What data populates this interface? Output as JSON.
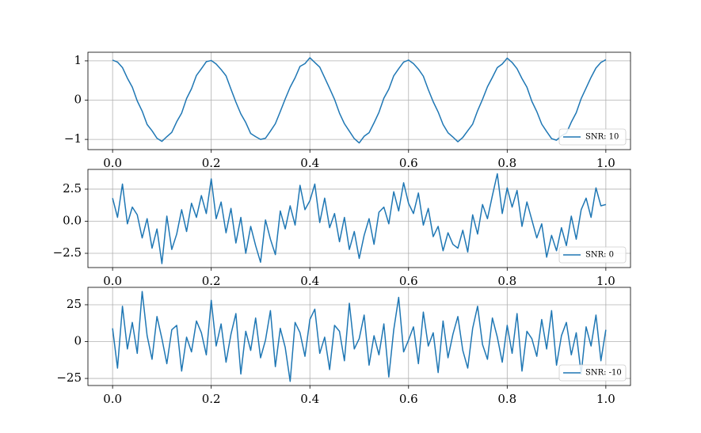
{
  "chart_data": [
    {
      "type": "line",
      "x": [
        0,
        0.01,
        0.02,
        0.03,
        0.04,
        0.05,
        0.06,
        0.07,
        0.08,
        0.09,
        0.1,
        0.11,
        0.12,
        0.13,
        0.14,
        0.15,
        0.16,
        0.17,
        0.18,
        0.19,
        0.2,
        0.21,
        0.22,
        0.23,
        0.24,
        0.25,
        0.26,
        0.27,
        0.28,
        0.29,
        0.3,
        0.31,
        0.32,
        0.33,
        0.34,
        0.35,
        0.36,
        0.37,
        0.38,
        0.39,
        0.4,
        0.41,
        0.42,
        0.43,
        0.44,
        0.45,
        0.46,
        0.47,
        0.48,
        0.49,
        0.5,
        0.51,
        0.52,
        0.53,
        0.54,
        0.55,
        0.56,
        0.57,
        0.58,
        0.59,
        0.6,
        0.61,
        0.62,
        0.63,
        0.64,
        0.65,
        0.66,
        0.67,
        0.68,
        0.69,
        0.7,
        0.71,
        0.72,
        0.73,
        0.74,
        0.75,
        0.76,
        0.77,
        0.78,
        0.79,
        0.8,
        0.81,
        0.82,
        0.83,
        0.84,
        0.85,
        0.86,
        0.87,
        0.88,
        0.89,
        0.9,
        0.91,
        0.92,
        0.93,
        0.94,
        0.95,
        0.96,
        0.97,
        0.98,
        0.99,
        1
      ],
      "series": [
        {
          "name": "SNR: 10",
          "color": "#1f77b4",
          "values": [
            1.02,
            0.97,
            0.83,
            0.56,
            0.33,
            -0.02,
            -0.28,
            -0.62,
            -0.78,
            -0.97,
            -1.05,
            -0.93,
            -0.82,
            -0.55,
            -0.33,
            0.04,
            0.29,
            0.63,
            0.8,
            0.98,
            1.01,
            0.92,
            0.78,
            0.62,
            0.28,
            -0.05,
            -0.35,
            -0.57,
            -0.85,
            -0.93,
            -1.0,
            -0.97,
            -0.79,
            -0.6,
            -0.29,
            0.03,
            0.33,
            0.57,
            0.86,
            0.93,
            1.08,
            0.96,
            0.84,
            0.57,
            0.3,
            0.02,
            -0.33,
            -0.6,
            -0.79,
            -0.98,
            -1.09,
            -0.92,
            -0.83,
            -0.58,
            -0.31,
            0.05,
            0.28,
            0.62,
            0.8,
            0.97,
            1.02,
            0.93,
            0.79,
            0.61,
            0.27,
            -0.04,
            -0.3,
            -0.62,
            -0.83,
            -0.94,
            -1.06,
            -0.95,
            -0.78,
            -0.61,
            -0.27,
            0.02,
            0.34,
            0.58,
            0.83,
            0.92,
            1.07,
            0.96,
            0.8,
            0.55,
            0.33,
            -0.03,
            -0.29,
            -0.61,
            -0.8,
            -0.98,
            -1.02,
            -0.91,
            -0.84,
            -0.56,
            -0.32,
            0.04,
            0.31,
            0.58,
            0.82,
            0.96,
            1.03
          ]
        }
      ],
      "xlim": [
        -0.05,
        1.05
      ],
      "ylim": [
        -1.26,
        1.22
      ],
      "xticks": [
        {
          "value": 0,
          "label": "0.0"
        },
        0.2,
        0.4,
        0.6,
        0.8,
        {
          "value": 1,
          "label": "1.0"
        }
      ],
      "yticks": [
        {
          "value": -1,
          "label": "−1"
        },
        0,
        1
      ],
      "grid": true,
      "legend": "lower right"
    },
    {
      "type": "line",
      "x": [
        0,
        0.01,
        0.02,
        0.03,
        0.04,
        0.05,
        0.06,
        0.07,
        0.08,
        0.09,
        0.1,
        0.11,
        0.12,
        0.13,
        0.14,
        0.15,
        0.16,
        0.17,
        0.18,
        0.19,
        0.2,
        0.21,
        0.22,
        0.23,
        0.24,
        0.25,
        0.26,
        0.27,
        0.28,
        0.29,
        0.3,
        0.31,
        0.32,
        0.33,
        0.34,
        0.35,
        0.36,
        0.37,
        0.38,
        0.39,
        0.4,
        0.41,
        0.42,
        0.43,
        0.44,
        0.45,
        0.46,
        0.47,
        0.48,
        0.49,
        0.5,
        0.51,
        0.52,
        0.53,
        0.54,
        0.55,
        0.56,
        0.57,
        0.58,
        0.59,
        0.6,
        0.61,
        0.62,
        0.63,
        0.64,
        0.65,
        0.66,
        0.67,
        0.68,
        0.69,
        0.7,
        0.71,
        0.72,
        0.73,
        0.74,
        0.75,
        0.76,
        0.77,
        0.78,
        0.79,
        0.8,
        0.81,
        0.82,
        0.83,
        0.84,
        0.85,
        0.86,
        0.87,
        0.88,
        0.89,
        0.9,
        0.91,
        0.92,
        0.93,
        0.94,
        0.95,
        0.96,
        0.97,
        0.98,
        0.99,
        1
      ],
      "series": [
        {
          "name": "SNR: 0",
          "color": "#1f77b4",
          "values": [
            1.8,
            0.3,
            2.9,
            -0.2,
            1.1,
            0.5,
            -1.3,
            0.2,
            -2.1,
            -0.6,
            -3.3,
            0.4,
            -2.2,
            -1.0,
            0.9,
            -0.8,
            1.4,
            0.3,
            2.0,
            0.6,
            3.3,
            0.2,
            1.5,
            -0.9,
            1.0,
            -1.7,
            0.3,
            -2.5,
            -0.4,
            -1.9,
            -3.2,
            0.1,
            -1.4,
            -2.6,
            0.8,
            -0.6,
            1.2,
            -0.3,
            2.8,
            0.9,
            1.6,
            2.9,
            -0.1,
            1.8,
            -0.5,
            0.6,
            -1.6,
            0.3,
            -2.2,
            -0.8,
            -2.9,
            -1.1,
            0.2,
            -1.8,
            0.7,
            1.1,
            -0.2,
            2.3,
            0.8,
            3.0,
            1.4,
            0.6,
            2.2,
            -0.3,
            1.0,
            -1.2,
            -0.4,
            -2.3,
            -0.9,
            -1.8,
            -2.1,
            -0.7,
            -2.4,
            0.5,
            -1.0,
            1.3,
            0.2,
            2.0,
            3.7,
            0.6,
            2.6,
            1.1,
            2.4,
            -0.4,
            1.5,
            0.1,
            -1.3,
            -0.2,
            -2.8,
            -1.1,
            -2.3,
            -0.5,
            -1.9,
            0.4,
            -1.4,
            0.9,
            1.8,
            0.3,
            2.6,
            1.2,
            1.3
          ]
        }
      ],
      "xlim": [
        -0.05,
        1.05
      ],
      "ylim": [
        -3.61,
        4.04
      ],
      "xticks": [
        {
          "value": 0,
          "label": "0.0"
        },
        0.2,
        0.4,
        0.6,
        0.8,
        {
          "value": 1,
          "label": "1.0"
        }
      ],
      "yticks": [
        {
          "value": -2.5,
          "label": "−2.5"
        },
        {
          "value": 0,
          "label": "0.0"
        },
        2.5
      ],
      "grid": true,
      "legend": "lower right"
    },
    {
      "type": "line",
      "x": [
        0,
        0.01,
        0.02,
        0.03,
        0.04,
        0.05,
        0.06,
        0.07,
        0.08,
        0.09,
        0.1,
        0.11,
        0.12,
        0.13,
        0.14,
        0.15,
        0.16,
        0.17,
        0.18,
        0.19,
        0.2,
        0.21,
        0.22,
        0.23,
        0.24,
        0.25,
        0.26,
        0.27,
        0.28,
        0.29,
        0.3,
        0.31,
        0.32,
        0.33,
        0.34,
        0.35,
        0.36,
        0.37,
        0.38,
        0.39,
        0.4,
        0.41,
        0.42,
        0.43,
        0.44,
        0.45,
        0.46,
        0.47,
        0.48,
        0.49,
        0.5,
        0.51,
        0.52,
        0.53,
        0.54,
        0.55,
        0.56,
        0.57,
        0.58,
        0.59,
        0.6,
        0.61,
        0.62,
        0.63,
        0.64,
        0.65,
        0.66,
        0.67,
        0.68,
        0.69,
        0.7,
        0.71,
        0.72,
        0.73,
        0.74,
        0.75,
        0.76,
        0.77,
        0.78,
        0.79,
        0.8,
        0.81,
        0.82,
        0.83,
        0.84,
        0.85,
        0.86,
        0.87,
        0.88,
        0.89,
        0.9,
        0.91,
        0.92,
        0.93,
        0.94,
        0.95,
        0.96,
        0.97,
        0.98,
        0.99,
        1
      ],
      "series": [
        {
          "name": "SNR: -10",
          "color": "#1f77b4",
          "values": [
            9,
            -18,
            24,
            -5,
            13,
            -8,
            34,
            4,
            -12,
            17,
            2,
            -15,
            8,
            11,
            -20,
            3,
            -7,
            14,
            6,
            -9,
            28,
            -3,
            12,
            -14,
            5,
            19,
            -22,
            7,
            -6,
            16,
            -11,
            1,
            21,
            -17,
            9,
            -4,
            -27,
            13,
            6,
            -10,
            15,
            22,
            -8,
            3,
            -19,
            11,
            7,
            -13,
            26,
            -5,
            2,
            18,
            -16,
            4,
            -9,
            12,
            -24,
            8,
            30,
            -7,
            1,
            10,
            -15,
            20,
            -3,
            6,
            -21,
            14,
            -11,
            5,
            17,
            -6,
            -18,
            9,
            24,
            -2,
            -12,
            16,
            3,
            -14,
            11,
            -8,
            19,
            -20,
            7,
            2,
            -10,
            15,
            -5,
            21,
            -16,
            4,
            13,
            -9,
            6,
            -22,
            10,
            -3,
            18,
            -13,
            8
          ]
        }
      ],
      "xlim": [
        -0.05,
        1.05
      ],
      "ylim": [
        -29.8,
        36.8
      ],
      "xticks": [
        {
          "value": 0,
          "label": "0.0"
        },
        0.2,
        0.4,
        0.6,
        0.8,
        {
          "value": 1,
          "label": "1.0"
        }
      ],
      "yticks": [
        {
          "value": -25,
          "label": "−25"
        },
        0,
        25
      ],
      "grid": true,
      "legend": "lower right"
    }
  ]
}
